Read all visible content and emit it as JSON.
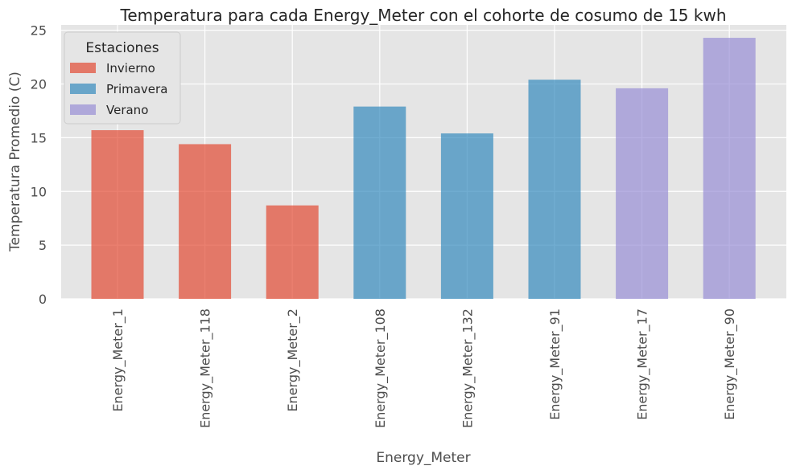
{
  "chart_data": {
    "type": "bar",
    "title": "Temperatura para cada Energy_Meter con el cohorte de cosumo de 15 kwh",
    "xlabel": "Energy_Meter",
    "ylabel": "Temperatura Promedio (C)",
    "ylim": [
      0,
      25.5
    ],
    "yticks": [
      "0",
      "5",
      "10",
      "15",
      "20",
      "25"
    ],
    "grid": true,
    "legend": {
      "title": "Estaciones",
      "placement": "top-left",
      "items": [
        {
          "label": "Invierno",
          "color": "#e24a33"
        },
        {
          "label": "Primavera",
          "color": "#348abd"
        },
        {
          "label": "Verano",
          "color": "#988ed5"
        }
      ]
    },
    "categories": [
      "Energy_Meter_1",
      "Energy_Meter_118",
      "Energy_Meter_2",
      "Energy_Meter_108",
      "Energy_Meter_132",
      "Energy_Meter_91",
      "Energy_Meter_17",
      "Energy_Meter_90"
    ],
    "values": [
      15.7,
      14.4,
      8.7,
      17.9,
      15.4,
      20.4,
      19.6,
      24.3
    ],
    "season_of_bar": [
      "Invierno",
      "Invierno",
      "Invierno",
      "Primavera",
      "Primavera",
      "Primavera",
      "Verano",
      "Verano"
    ],
    "background_color": "#e5e5e5",
    "grid_color": "#ffffff"
  }
}
